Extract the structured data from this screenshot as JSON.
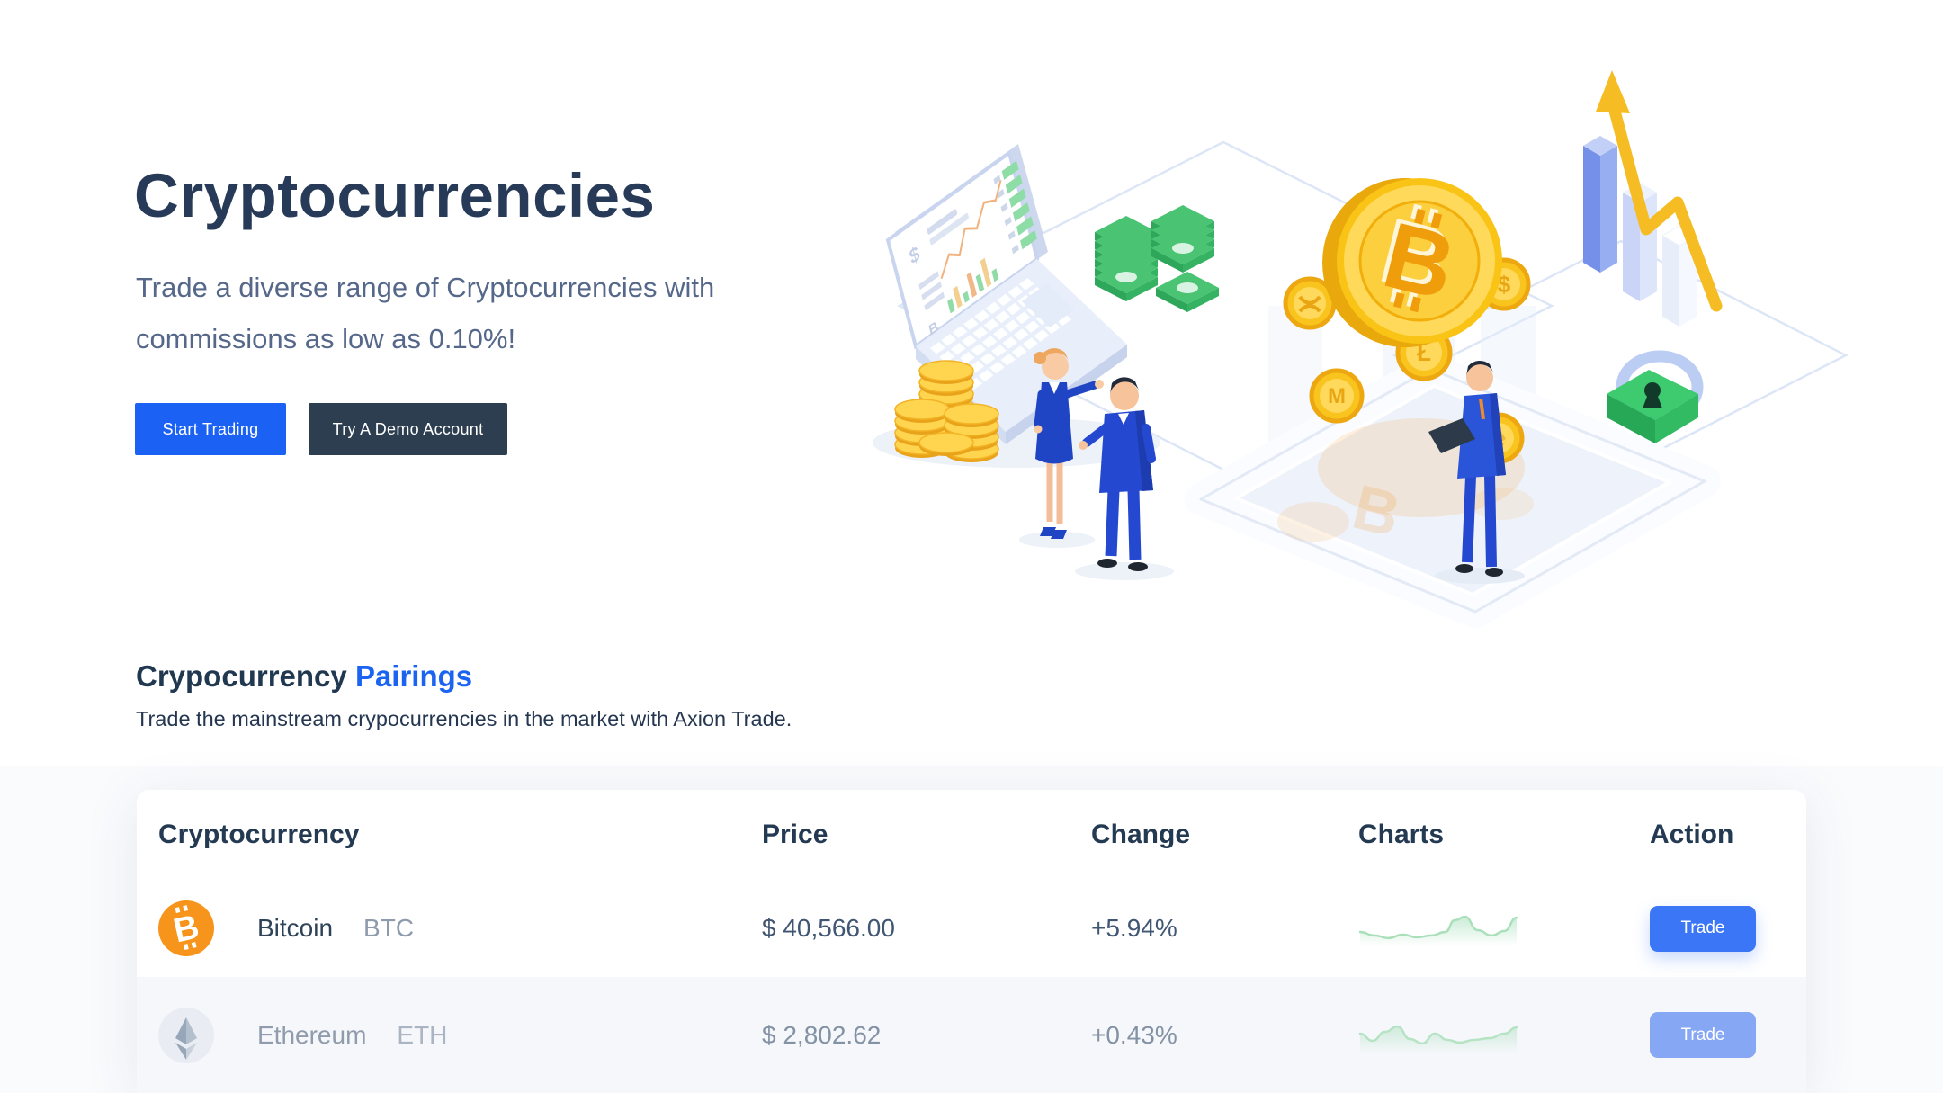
{
  "hero": {
    "title": "Cryptocurrencies",
    "subtitle_line1": "Trade a diverse range of Cryptocurrencies with",
    "subtitle_line2": "commissions as low as 0.10%!",
    "start_button": "Start Trading",
    "demo_button": "Try A Demo Account"
  },
  "pairings": {
    "title": "Crypocurrency",
    "title_accent": "Pairings",
    "subtitle": "Trade the mainstream crypocurrencies in the market with Axion Trade.",
    "table": {
      "headers": [
        "Cryptocurrency",
        "Price",
        "Change",
        "Charts",
        "Action"
      ],
      "rows": [
        {
          "name": "Bitcoin",
          "symbol": "BTC",
          "price": "$ 40,566.00",
          "change": "+5.94%",
          "action": "Trade",
          "icon": "bitcoin-icon",
          "spark": [
            [
              2,
              26
            ],
            [
              18,
              30
            ],
            [
              34,
              33
            ],
            [
              50,
              29
            ],
            [
              66,
              32
            ],
            [
              82,
              30
            ],
            [
              98,
              26
            ],
            [
              108,
              13
            ],
            [
              120,
              9
            ],
            [
              134,
              24
            ],
            [
              150,
              30
            ],
            [
              164,
              25
            ],
            [
              178,
              10
            ]
          ]
        },
        {
          "name": "Ethereum",
          "symbol": "ETH",
          "price": "$ 2,802.62",
          "change": "+0.43%",
          "action": "Trade",
          "icon": "ethereum-icon",
          "spark": [
            [
              2,
              20
            ],
            [
              16,
              28
            ],
            [
              30,
              18
            ],
            [
              44,
              12
            ],
            [
              58,
              26
            ],
            [
              72,
              31
            ],
            [
              86,
              20
            ],
            [
              100,
              27
            ],
            [
              114,
              30
            ],
            [
              130,
              27
            ],
            [
              148,
              25
            ],
            [
              164,
              20
            ],
            [
              178,
              13
            ]
          ]
        }
      ]
    }
  },
  "colors": {
    "accent_blue": "#1b62f4",
    "dark_navy": "#2d3e50",
    "heading_navy": "#273b58",
    "bitcoin_orange": "#f7941c",
    "spark_green": "#a9e0ba",
    "trade_blue": "#3b76f6",
    "trade_blue_faded": "#85a7f4",
    "row_muted_bg": "#f5f7fa"
  },
  "icons": {
    "bitcoin": "B-with-prongs (₿)",
    "ethereum": "eth-diamond"
  }
}
